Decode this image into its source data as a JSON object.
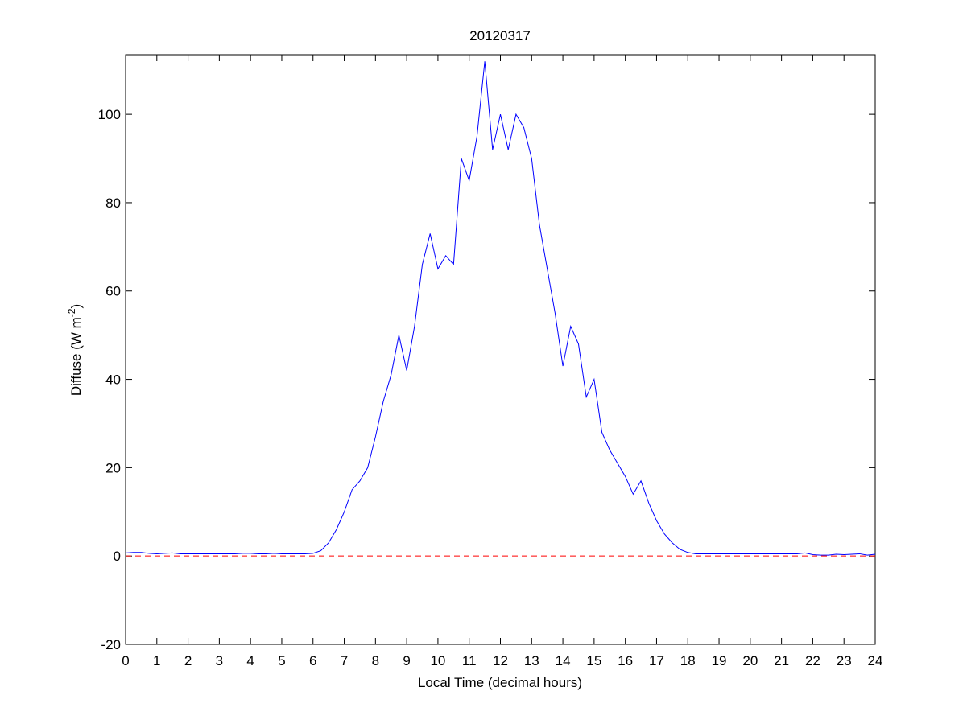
{
  "chart_data": {
    "type": "line",
    "title": "20120317",
    "x_label": "Local Time (decimal hours)",
    "y_label": {
      "text": "Diffuse (W m",
      "superscript": "-2",
      "suffix": ")"
    },
    "xlim": [
      0,
      24
    ],
    "ylim": [
      -20,
      113.5
    ],
    "xticks": [
      0,
      1,
      2,
      3,
      4,
      5,
      6,
      7,
      8,
      9,
      10,
      11,
      12,
      13,
      14,
      15,
      16,
      17,
      18,
      19,
      20,
      21,
      22,
      23,
      24
    ],
    "yticks": [
      -20,
      0,
      20,
      40,
      60,
      80,
      100
    ],
    "grid": false,
    "series": [
      {
        "color": "#0000ff",
        "dashed": false,
        "x": [
          0,
          0.25,
          0.5,
          0.75,
          1,
          1.25,
          1.5,
          1.75,
          2,
          2.25,
          2.5,
          2.75,
          3,
          3.25,
          3.5,
          3.75,
          4,
          4.25,
          4.5,
          4.75,
          5,
          5.25,
          5.5,
          5.75,
          6,
          6.25,
          6.5,
          6.75,
          7,
          7.25,
          7.5,
          7.75,
          8,
          8.25,
          8.5,
          8.75,
          9,
          9.25,
          9.5,
          9.75,
          10,
          10.25,
          10.5,
          10.75,
          11,
          11.25,
          11.5,
          11.75,
          12,
          12.25,
          12.5,
          12.75,
          13,
          13.25,
          13.5,
          13.75,
          14,
          14.25,
          14.5,
          14.75,
          15,
          15.25,
          15.5,
          15.75,
          16,
          16.25,
          16.5,
          16.75,
          17,
          17.25,
          17.5,
          17.75,
          18,
          18.25,
          18.5,
          18.75,
          19,
          19.25,
          19.5,
          19.75,
          20,
          20.25,
          20.5,
          20.75,
          21,
          21.25,
          21.5,
          21.75,
          22,
          22.25,
          22.5,
          22.75,
          23,
          23.25,
          23.5,
          23.75,
          24
        ],
        "values": [
          0.7,
          0.8,
          0.8,
          0.6,
          0.5,
          0.6,
          0.7,
          0.5,
          0.5,
          0.5,
          0.5,
          0.5,
          0.5,
          0.5,
          0.5,
          0.6,
          0.6,
          0.5,
          0.5,
          0.6,
          0.5,
          0.5,
          0.5,
          0.5,
          0.6,
          1.2,
          3,
          6,
          10,
          15,
          17,
          20,
          27,
          35,
          41,
          50,
          42,
          52,
          66,
          73,
          65,
          68,
          66,
          90,
          85,
          95,
          112,
          92,
          100,
          92,
          100,
          97,
          90,
          75,
          65,
          55,
          43,
          52,
          48,
          36,
          40,
          28,
          24,
          21,
          18,
          14,
          17,
          12,
          8,
          5,
          3,
          1.5,
          0.8,
          0.5,
          0.5,
          0.5,
          0.5,
          0.5,
          0.5,
          0.5,
          0.5,
          0.5,
          0.5,
          0.5,
          0.5,
          0.5,
          0.5,
          0.7,
          0.3,
          0.2,
          0.2,
          0.4,
          0.3,
          0.4,
          0.5,
          0.2,
          0.4
        ]
      },
      {
        "color": "#ff0000",
        "dashed": true,
        "x": [
          0,
          24
        ],
        "values": [
          0,
          0
        ]
      }
    ]
  }
}
